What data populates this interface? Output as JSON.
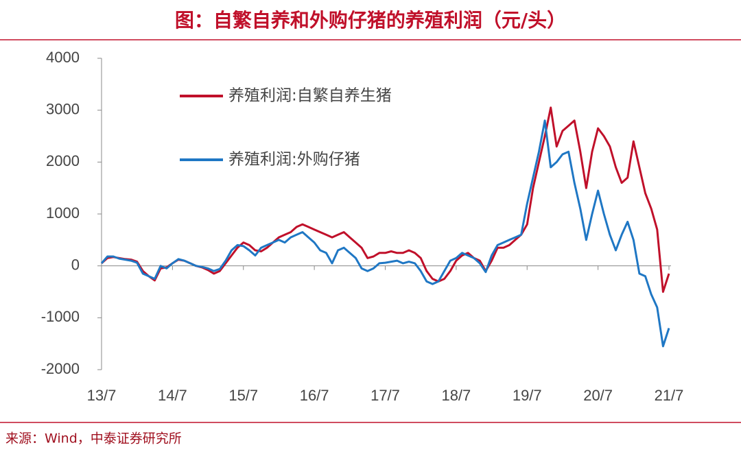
{
  "chart_data": {
    "type": "line",
    "title": "图：自繁自养和外购仔猪的养殖利润（元/头）",
    "source": "来源：Wind，中泰证券研究所",
    "categories": [
      "13/7",
      null,
      null,
      null,
      null,
      null,
      null,
      null,
      null,
      null,
      null,
      null,
      "14/7",
      null,
      null,
      null,
      null,
      null,
      null,
      null,
      null,
      null,
      null,
      null,
      "15/7",
      null,
      null,
      null,
      null,
      null,
      null,
      null,
      null,
      null,
      null,
      null,
      "16/7",
      null,
      null,
      null,
      null,
      null,
      null,
      null,
      null,
      null,
      null,
      null,
      "17/7",
      null,
      null,
      null,
      null,
      null,
      null,
      null,
      null,
      null,
      null,
      null,
      "18/7",
      null,
      null,
      null,
      null,
      null,
      null,
      null,
      null,
      null,
      null,
      null,
      "19/7",
      null,
      null,
      null,
      null,
      null,
      null,
      null,
      null,
      null,
      null,
      null,
      "20/7",
      null,
      null,
      null,
      null,
      null,
      null,
      null,
      null,
      null,
      null,
      null,
      "21/7"
    ],
    "series": [
      {
        "name": "养殖利润:自繁自养生猪",
        "color": "#c0102a",
        "values": [
          50,
          150,
          170,
          150,
          130,
          120,
          80,
          -100,
          -200,
          -280,
          -50,
          -30,
          50,
          120,
          100,
          50,
          0,
          -30,
          -80,
          -150,
          -100,
          50,
          200,
          350,
          450,
          400,
          300,
          280,
          350,
          450,
          550,
          600,
          650,
          750,
          800,
          750,
          700,
          650,
          600,
          550,
          600,
          650,
          550,
          450,
          350,
          150,
          180,
          250,
          250,
          280,
          250,
          250,
          300,
          250,
          150,
          -100,
          -250,
          -300,
          -250,
          -100,
          100,
          200,
          250,
          150,
          100,
          -100,
          100,
          350,
          350,
          400,
          500,
          600,
          800,
          1500,
          2000,
          2500,
          3050,
          2300,
          2600,
          2700,
          2800,
          2200,
          1500,
          2200,
          2650,
          2500,
          2300,
          1900,
          1600,
          1700,
          2400,
          1900,
          1400,
          1100,
          700,
          -500,
          -150
        ]
      },
      {
        "name": "养殖利润:外购仔猪",
        "color": "#1f77c4",
        "values": [
          50,
          180,
          180,
          140,
          120,
          100,
          60,
          -150,
          -200,
          -250,
          0,
          -50,
          50,
          130,
          100,
          50,
          0,
          -20,
          -50,
          -100,
          -60,
          100,
          300,
          400,
          380,
          300,
          200,
          350,
          400,
          450,
          500,
          450,
          550,
          600,
          650,
          550,
          450,
          300,
          250,
          50,
          300,
          350,
          250,
          150,
          -50,
          -100,
          -50,
          50,
          60,
          80,
          100,
          50,
          80,
          50,
          -100,
          -300,
          -350,
          -300,
          -100,
          100,
          150,
          250,
          200,
          150,
          50,
          -120,
          200,
          400,
          450,
          500,
          550,
          600,
          1200,
          1700,
          2200,
          2800,
          1900,
          2000,
          2150,
          2200,
          1600,
          1100,
          500,
          1000,
          1450,
          1000,
          600,
          300,
          600,
          850,
          500,
          -150,
          -200,
          -550,
          -800,
          -1550,
          -1200
        ]
      }
    ],
    "ylim": [
      -2000,
      4000
    ],
    "yticks": [
      -2000,
      -1000,
      0,
      1000,
      2000,
      3000,
      4000
    ]
  }
}
